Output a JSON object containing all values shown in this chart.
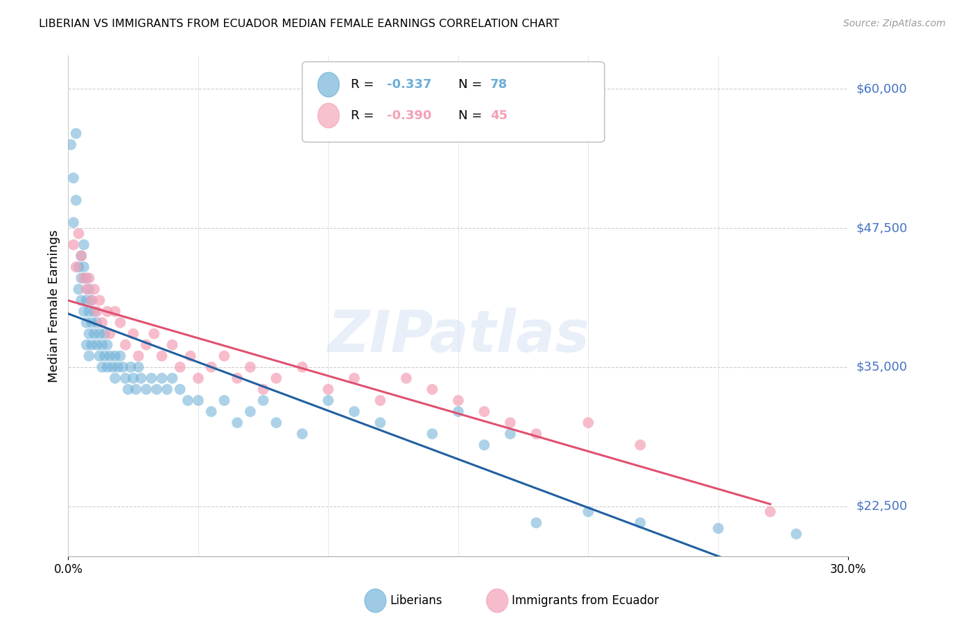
{
  "title": "LIBERIAN VS IMMIGRANTS FROM ECUADOR MEDIAN FEMALE EARNINGS CORRELATION CHART",
  "source": "Source: ZipAtlas.com",
  "ylabel": "Median Female Earnings",
  "yticks": [
    22500,
    35000,
    47500,
    60000
  ],
  "ytick_labels": [
    "$22,500",
    "$35,000",
    "$47,500",
    "$60,000"
  ],
  "xlim": [
    0.0,
    0.3
  ],
  "ylim": [
    18000,
    63000
  ],
  "liberian_color": "#6baed6",
  "ecuador_color": "#f4a0b5",
  "trend_liberian_color": "#2060a0",
  "trend_ecuador_color": "#e05070",
  "trend_liberian_dashed_color": "#a0c8e8",
  "watermark": "ZIPatlas",
  "r_lib": "-0.337",
  "n_lib": "78",
  "r_ecu": "-0.390",
  "n_ecu": "45",
  "liberian_x": [
    0.001,
    0.002,
    0.002,
    0.003,
    0.003,
    0.004,
    0.004,
    0.005,
    0.005,
    0.005,
    0.006,
    0.006,
    0.006,
    0.007,
    0.007,
    0.007,
    0.007,
    0.008,
    0.008,
    0.008,
    0.008,
    0.009,
    0.009,
    0.009,
    0.01,
    0.01,
    0.011,
    0.011,
    0.012,
    0.012,
    0.013,
    0.013,
    0.014,
    0.014,
    0.015,
    0.015,
    0.016,
    0.017,
    0.018,
    0.018,
    0.019,
    0.02,
    0.021,
    0.022,
    0.023,
    0.024,
    0.025,
    0.026,
    0.027,
    0.028,
    0.03,
    0.032,
    0.034,
    0.036,
    0.038,
    0.04,
    0.043,
    0.046,
    0.05,
    0.055,
    0.06,
    0.065,
    0.07,
    0.075,
    0.08,
    0.09,
    0.1,
    0.11,
    0.12,
    0.14,
    0.15,
    0.16,
    0.17,
    0.18,
    0.2,
    0.22,
    0.25,
    0.28
  ],
  "liberian_y": [
    55000,
    52000,
    48000,
    56000,
    50000,
    44000,
    42000,
    45000,
    43000,
    41000,
    46000,
    44000,
    40000,
    43000,
    41000,
    39000,
    37000,
    42000,
    40000,
    38000,
    36000,
    41000,
    39000,
    37000,
    40000,
    38000,
    39000,
    37000,
    38000,
    36000,
    37000,
    35000,
    38000,
    36000,
    37000,
    35000,
    36000,
    35000,
    36000,
    34000,
    35000,
    36000,
    35000,
    34000,
    33000,
    35000,
    34000,
    33000,
    35000,
    34000,
    33000,
    34000,
    33000,
    34000,
    33000,
    34000,
    33000,
    32000,
    32000,
    31000,
    32000,
    30000,
    31000,
    32000,
    30000,
    29000,
    32000,
    31000,
    30000,
    29000,
    31000,
    28000,
    29000,
    21000,
    22000,
    21000,
    20500,
    20000
  ],
  "ecuador_x": [
    0.002,
    0.003,
    0.004,
    0.005,
    0.006,
    0.007,
    0.008,
    0.009,
    0.01,
    0.011,
    0.012,
    0.013,
    0.015,
    0.016,
    0.018,
    0.02,
    0.022,
    0.025,
    0.027,
    0.03,
    0.033,
    0.036,
    0.04,
    0.043,
    0.047,
    0.05,
    0.055,
    0.06,
    0.065,
    0.07,
    0.075,
    0.08,
    0.09,
    0.1,
    0.11,
    0.12,
    0.13,
    0.14,
    0.15,
    0.16,
    0.17,
    0.18,
    0.2,
    0.22,
    0.27
  ],
  "ecuador_y": [
    46000,
    44000,
    47000,
    45000,
    43000,
    42000,
    43000,
    41000,
    42000,
    40000,
    41000,
    39000,
    40000,
    38000,
    40000,
    39000,
    37000,
    38000,
    36000,
    37000,
    38000,
    36000,
    37000,
    35000,
    36000,
    34000,
    35000,
    36000,
    34000,
    35000,
    33000,
    34000,
    35000,
    33000,
    34000,
    32000,
    34000,
    33000,
    32000,
    31000,
    30000,
    29000,
    30000,
    28000,
    22000
  ]
}
